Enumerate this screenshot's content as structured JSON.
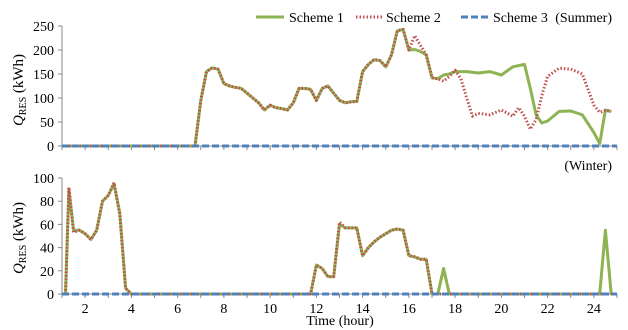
{
  "legend": [
    {
      "name": "Scheme 1",
      "color": "#8DB352",
      "style": "solid"
    },
    {
      "name": "Scheme 2",
      "color": "#C0504D",
      "style": "dotted"
    },
    {
      "name": "Scheme 3",
      "color": "#4F81BD",
      "style": "dashed"
    }
  ],
  "chart_data": [
    {
      "type": "line",
      "panel_label": "(Summer)",
      "ylabel_main": "Q",
      "ylabel_sub": "RES",
      "ylabel_unit": "(kWh)",
      "ylim": [
        0,
        250
      ],
      "yticks": [
        0,
        50,
        100,
        150,
        200,
        250
      ],
      "xlim": [
        1,
        25
      ],
      "grid": false,
      "series": [
        {
          "name": "Scheme 1",
          "color": "#8DB352",
          "x": [
            1,
            1.5,
            2,
            2.5,
            3,
            3.5,
            4,
            4.5,
            5,
            5.5,
            6,
            6.5,
            6.75,
            7,
            7.25,
            7.5,
            7.75,
            8,
            8.25,
            8.5,
            8.75,
            9,
            9.25,
            9.5,
            9.75,
            10,
            10.25,
            10.5,
            10.75,
            11,
            11.25,
            11.5,
            11.75,
            12,
            12.25,
            12.5,
            12.75,
            13,
            13.25,
            13.5,
            13.75,
            14,
            14.25,
            14.5,
            14.75,
            15,
            15.25,
            15.5,
            15.75,
            16,
            16.25,
            16.5,
            16.75,
            17,
            17.25,
            17.5,
            17.75,
            18,
            18.5,
            19,
            19.5,
            20,
            20.5,
            21,
            21.25,
            21.5,
            21.75,
            22,
            22.5,
            23,
            23.5,
            24,
            24.25,
            24.5,
            24.75
          ],
          "values": [
            0,
            0,
            0,
            0,
            0,
            0,
            0,
            0,
            0,
            0,
            0,
            0,
            0,
            95,
            155,
            163,
            160,
            130,
            125,
            122,
            120,
            110,
            100,
            90,
            75,
            85,
            80,
            78,
            75,
            90,
            120,
            120,
            118,
            95,
            120,
            125,
            110,
            95,
            90,
            92,
            93,
            155,
            170,
            180,
            178,
            165,
            190,
            240,
            243,
            200,
            201,
            197,
            190,
            142,
            140,
            148,
            150,
            155,
            155,
            152,
            155,
            148,
            165,
            170,
            120,
            65,
            48,
            52,
            72,
            73,
            65,
            28,
            5,
            75,
            72
          ]
        },
        {
          "name": "Scheme 2",
          "color": "#C0504D",
          "x": [
            1,
            1.5,
            2,
            2.5,
            3,
            3.5,
            4,
            4.5,
            5,
            5.5,
            6,
            6.5,
            6.75,
            7,
            7.25,
            7.5,
            7.75,
            8,
            8.25,
            8.5,
            8.75,
            9,
            9.25,
            9.5,
            9.75,
            10,
            10.25,
            10.5,
            10.75,
            11,
            11.25,
            11.5,
            11.75,
            12,
            12.25,
            12.5,
            12.75,
            13,
            13.25,
            13.5,
            13.75,
            14,
            14.25,
            14.5,
            14.75,
            15,
            15.25,
            15.5,
            15.75,
            16,
            16.25,
            16.5,
            16.75,
            17,
            17.25,
            17.5,
            17.75,
            18,
            18.25,
            18.5,
            18.75,
            19,
            19.5,
            20,
            20.5,
            20.75,
            21,
            21.25,
            21.5,
            21.75,
            22,
            22.5,
            23,
            23.5,
            24,
            24.25,
            24.5,
            24.75
          ],
          "values": [
            0,
            0,
            0,
            0,
            0,
            0,
            0,
            0,
            0,
            0,
            0,
            0,
            0,
            95,
            155,
            163,
            160,
            130,
            125,
            122,
            120,
            110,
            100,
            90,
            75,
            85,
            80,
            78,
            75,
            90,
            120,
            120,
            118,
            95,
            120,
            125,
            110,
            95,
            90,
            92,
            93,
            155,
            170,
            180,
            178,
            165,
            190,
            240,
            243,
            200,
            230,
            210,
            190,
            142,
            140,
            135,
            145,
            158,
            140,
            100,
            62,
            68,
            65,
            75,
            62,
            80,
            62,
            35,
            55,
            105,
            145,
            162,
            160,
            150,
            85,
            70,
            74,
            72
          ]
        },
        {
          "name": "Scheme 3",
          "color": "#4F81BD",
          "x": [
            1,
            25
          ],
          "values": [
            0,
            0
          ]
        }
      ]
    },
    {
      "type": "line",
      "panel_label": "(Winter)",
      "ylabel_main": "Q",
      "ylabel_sub": "RES",
      "ylabel_unit": "(kWh)",
      "xlabel": "Time (hour)",
      "ylim": [
        0,
        100
      ],
      "yticks": [
        0,
        20,
        40,
        60,
        80,
        100
      ],
      "xlim": [
        1,
        25
      ],
      "xticks": [
        2,
        4,
        6,
        8,
        10,
        12,
        14,
        16,
        18,
        20,
        22,
        24
      ],
      "grid": false,
      "series": [
        {
          "name": "Scheme 1",
          "color": "#8DB352",
          "x": [
            1,
            1.15,
            1.3,
            1.5,
            1.75,
            2,
            2.25,
            2.5,
            2.75,
            3,
            3.25,
            3.5,
            3.75,
            4,
            4.25,
            4.5,
            5,
            6,
            7,
            8,
            9,
            10,
            11,
            11.75,
            12,
            12.25,
            12.5,
            12.75,
            13,
            13.25,
            13.5,
            13.75,
            14,
            14.25,
            14.5,
            14.75,
            15,
            15.25,
            15.5,
            15.75,
            16,
            16.25,
            16.5,
            16.75,
            17,
            17.25,
            17.5,
            17.75,
            18,
            18.5,
            19,
            20,
            21,
            22,
            23,
            24,
            24.25,
            24.5,
            24.75,
            25
          ],
          "values": [
            0,
            0,
            90,
            55,
            55,
            52,
            47,
            55,
            80,
            85,
            95,
            70,
            5,
            0,
            0,
            0,
            0,
            0,
            0,
            0,
            0,
            0,
            0,
            0,
            25,
            22,
            15,
            15,
            60,
            57,
            57,
            57,
            33,
            40,
            45,
            49,
            52,
            55,
            56,
            55,
            33,
            32,
            30,
            30,
            0,
            0,
            22,
            0,
            0,
            0,
            0,
            0,
            0,
            0,
            0,
            0,
            0,
            55,
            0,
            0
          ]
        },
        {
          "name": "Scheme 2",
          "color": "#C0504D",
          "x": [
            1,
            1.15,
            1.3,
            1.5,
            1.75,
            2,
            2.25,
            2.5,
            2.75,
            3,
            3.25,
            3.5,
            3.75,
            4,
            4.25,
            4.5,
            5,
            6,
            7,
            8,
            9,
            10,
            11,
            11.75,
            12,
            12.25,
            12.5,
            12.75,
            13,
            13.25,
            13.5,
            13.75,
            14,
            14.25,
            14.5,
            14.75,
            15,
            15.25,
            15.5,
            15.75,
            16,
            16.25,
            16.5,
            16.75,
            17,
            17.25,
            17.5,
            17.75,
            18,
            18.5,
            19,
            20,
            21,
            22,
            23,
            24,
            25
          ],
          "values": [
            0,
            0,
            92,
            53,
            55,
            52,
            47,
            55,
            80,
            85,
            96,
            68,
            5,
            0,
            0,
            0,
            0,
            0,
            0,
            0,
            0,
            0,
            0,
            0,
            25,
            22,
            15,
            15,
            62,
            57,
            57,
            57,
            33,
            40,
            45,
            49,
            52,
            55,
            56,
            55,
            33,
            32,
            30,
            30,
            0,
            0,
            0,
            0,
            0,
            0,
            0,
            0,
            0,
            0,
            0,
            0,
            0
          ]
        },
        {
          "name": "Scheme 3",
          "color": "#4F81BD",
          "x": [
            1,
            25
          ],
          "values": [
            0,
            0
          ]
        }
      ]
    }
  ]
}
